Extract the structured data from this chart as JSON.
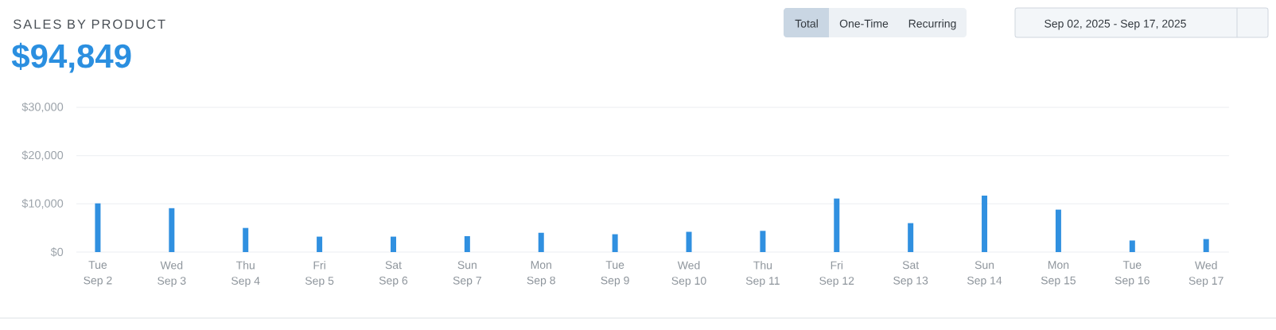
{
  "chart_data": {
    "type": "bar",
    "title": "SALES BY PRODUCT",
    "subtitle": "$94,849",
    "categories": [
      "Tue Sep 2",
      "Wed Sep 3",
      "Thu Sep 4",
      "Fri Sep 5",
      "Sat Sep 6",
      "Sun Sep 7",
      "Mon Sep 8",
      "Tue Sep 9",
      "Wed Sep 10",
      "Thu Sep 11",
      "Fri Sep 12",
      "Sat Sep 13",
      "Sun Sep 14",
      "Mon Sep 15",
      "Tue Sep 16",
      "Wed Sep 17"
    ],
    "values": [
      10100,
      9100,
      5000,
      3200,
      3200,
      3300,
      4000,
      3700,
      4200,
      4400,
      11100,
      6000,
      11700,
      8800,
      2400,
      2700
    ],
    "color": "#3090e0",
    "ylim": [
      0,
      30000
    ],
    "yticks": [
      {
        "value": 0,
        "label": "$0"
      },
      {
        "value": 10000,
        "label": "$10,000"
      },
      {
        "value": 20000,
        "label": "$20,000"
      },
      {
        "value": 30000,
        "label": "$30,000"
      }
    ],
    "grid": "y",
    "annotations": [
      "Total",
      "One-Time",
      "Recurring",
      "Sep 02, 2025 - Sep 17, 2025"
    ]
  }
}
